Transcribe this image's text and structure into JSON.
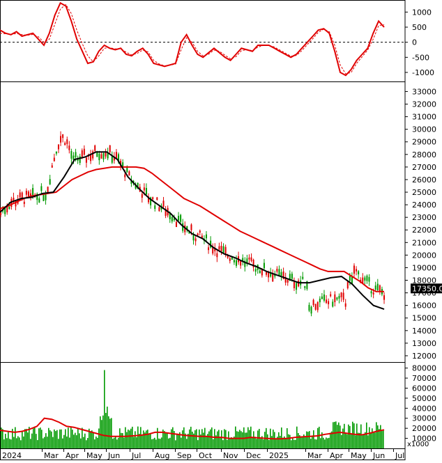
{
  "chart_data": [
    {
      "panel": "oscillator",
      "type": "line",
      "ylim": [
        -1300,
        1400
      ],
      "yticks": [
        "1000",
        "500",
        "0",
        "-500",
        "-1000"
      ],
      "ytick_values": [
        1000,
        500,
        0,
        -500,
        -1000
      ],
      "zero_line": true,
      "series": [
        {
          "color": "#e00000",
          "style": "solid",
          "values": [
            400,
            300,
            250,
            350,
            200,
            250,
            300,
            100,
            -100,
            300,
            900,
            1300,
            1200,
            700,
            100,
            -300,
            -700,
            -650,
            -300,
            -100,
            -200,
            -250,
            -200,
            -400,
            -450,
            -300,
            -200,
            -400,
            -700,
            -750,
            -800,
            -750,
            -700,
            0,
            250,
            -100,
            -400,
            -500,
            -350,
            -200,
            -350,
            -500,
            -600,
            -400,
            -200,
            -250,
            -300,
            -100,
            -100,
            -100,
            -200,
            -300,
            -400,
            -500,
            -400,
            -200,
            0,
            200,
            400,
            450,
            300,
            -300,
            -1000,
            -1100,
            -900,
            -600,
            -400,
            -200,
            300,
            700,
            500
          ]
        },
        {
          "color": "#e00000",
          "style": "dashed",
          "values": [
            300,
            280,
            260,
            290,
            250,
            230,
            260,
            180,
            0,
            100,
            600,
            1100,
            1250,
            950,
            400,
            -50,
            -450,
            -650,
            -450,
            -200,
            -180,
            -220,
            -210,
            -330,
            -420,
            -370,
            -260,
            -320,
            -600,
            -720,
            -780,
            -760,
            -720,
            -250,
            150,
            0,
            -300,
            -450,
            -400,
            -260,
            -300,
            -430,
            -550,
            -480,
            -280,
            -240,
            -280,
            -160,
            -110,
            -100,
            -160,
            -260,
            -360,
            -460,
            -440,
            -280,
            -80,
            120,
            330,
            430,
            350,
            -100,
            -750,
            -1050,
            -1000,
            -700,
            -480,
            -260,
            100,
            550,
            580
          ]
        }
      ]
    },
    {
      "panel": "price",
      "type": "candlestick",
      "ylim": [
        11500,
        33800
      ],
      "yticks": [
        "33000",
        "32000",
        "31000",
        "30000",
        "29000",
        "28000",
        "27000",
        "26000",
        "25000",
        "24000",
        "23000",
        "22000",
        "21000",
        "20000",
        "19000",
        "18000",
        "17000",
        "16000",
        "15000",
        "14000",
        "13000",
        "12000"
      ],
      "ytick_values": [
        33000,
        32000,
        31000,
        30000,
        29000,
        28000,
        27000,
        26000,
        25000,
        24000,
        23000,
        22000,
        21000,
        20000,
        19000,
        18000,
        17000,
        16000,
        15000,
        14000,
        13000,
        12000
      ],
      "last_price": "17350.00",
      "last_price_color": "#000000",
      "up_color": "#009900",
      "down_color": "#e00000",
      "series": [
        {
          "color": "#e00000",
          "values": [
            23700,
            23900,
            24200,
            24500,
            24700,
            24800,
            24900,
            25000,
            25500,
            26000,
            26300,
            26600,
            26800,
            26900,
            27000,
            27000,
            27000,
            27000,
            26900,
            26500,
            26000,
            25500,
            25000,
            24500,
            24200,
            23900,
            23500,
            23100,
            22700,
            22300,
            21900,
            21600,
            21300,
            21000,
            20700,
            20400,
            20100,
            19800,
            19500,
            19200,
            18900,
            18700,
            18700,
            18700,
            18300,
            17900,
            17400,
            17100,
            17100
          ]
        },
        {
          "color": "#000000",
          "values": [
            23400,
            24200,
            24500,
            24600,
            24900,
            25000,
            26200,
            27600,
            27800,
            28200,
            28200,
            27600,
            26200,
            25300,
            24500,
            23900,
            23300,
            22400,
            21700,
            21300,
            20600,
            20100,
            19800,
            19400,
            19100,
            18700,
            18400,
            18100,
            17800,
            17800,
            18000,
            18200,
            18300,
            17700,
            16800,
            16000,
            15700
          ]
        }
      ]
    },
    {
      "panel": "volume",
      "type": "bar",
      "ylim": [
        0,
        86000
      ],
      "yticks": [
        "80000",
        "70000",
        "60000",
        "50000",
        "40000",
        "30000",
        "20000",
        "10000"
      ],
      "ytick_values": [
        80000,
        70000,
        60000,
        50000,
        40000,
        30000,
        20000,
        10000
      ],
      "unit_label": "x1000",
      "bar_color": "#009900",
      "ma_color": "#e00000",
      "ma_values": [
        18000,
        17000,
        16000,
        17000,
        19000,
        22000,
        30000,
        29000,
        26000,
        22000,
        21000,
        19000,
        17000,
        15000,
        13000,
        12000,
        12000,
        12000,
        12500,
        13000,
        14000,
        16000,
        16000,
        15000,
        14000,
        13000,
        12500,
        12000,
        12000,
        11000,
        11000,
        10000,
        10000,
        10000,
        11000,
        10500,
        10000,
        9500,
        9500,
        10000,
        11000,
        11500,
        12000,
        12500,
        14000,
        15000,
        16000,
        15000,
        14000,
        13500,
        15000,
        17000,
        18500
      ]
    },
    {
      "panel": "xaxis",
      "type": "axis",
      "labels": [
        "2024",
        "Mar",
        "Apr",
        "May",
        "Jun",
        "Jul",
        "Aug",
        "Sep",
        "Oct",
        "Nov",
        "Dec",
        "2025",
        "Mar",
        "Apr",
        "May",
        "Jun",
        "Jul"
      ]
    }
  ]
}
